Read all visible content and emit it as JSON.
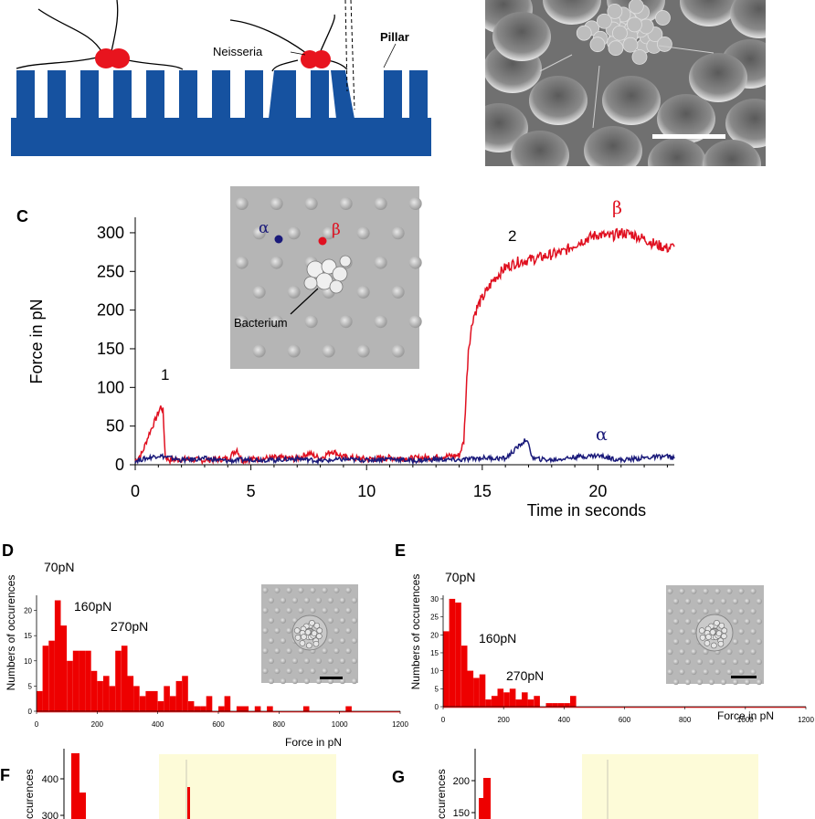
{
  "panel_labels": {
    "c": "C",
    "d": "D",
    "e": "E",
    "f": "F",
    "g": "G"
  },
  "schematic": {
    "neisseria_label": "Neisseria",
    "pillar_label": "Pillar"
  },
  "colors": {
    "pillar_blue": "#1652a0",
    "bacteria_red": "#e8141e",
    "beta_red": "#e01020",
    "alpha_navy": "#1a1a7a",
    "hist_red": "#ee0000",
    "inset_yellow": "#fdfbd8"
  },
  "panel_c": {
    "inset": {
      "alpha": "α",
      "beta": "β",
      "bacterium": "Bacterium"
    },
    "annotations": {
      "peak1": "1",
      "peak2": "2",
      "beta_label": "β",
      "alpha_label": "α"
    }
  },
  "chart_data": [
    {
      "id": "C",
      "type": "line",
      "xlabel": "Time in seconds",
      "ylabel": "Force in pN",
      "xlim": [
        0,
        23.3
      ],
      "ylim": [
        0,
        320
      ],
      "xticks": [
        0,
        5,
        10,
        15,
        20
      ],
      "yticks": [
        0,
        50,
        100,
        150,
        200,
        250,
        300
      ],
      "series": [
        {
          "name": "β",
          "color": "#e01020",
          "x": [
            0,
            0.3,
            0.6,
            0.9,
            1.1,
            1.2,
            1.3,
            1.5,
            2,
            3,
            4,
            4.4,
            4.6,
            5,
            6,
            7,
            7.5,
            8,
            8.5,
            9,
            10,
            11,
            12,
            13,
            14,
            14.2,
            14.4,
            14.6,
            14.8,
            15,
            15.2,
            15.5,
            16,
            16.5,
            17,
            17.5,
            18,
            18.5,
            19,
            19.5,
            20,
            20.5,
            21,
            21.5,
            22,
            22.5,
            23,
            23.3
          ],
          "y": [
            5,
            15,
            40,
            60,
            75,
            70,
            10,
            6,
            7,
            6,
            8,
            20,
            6,
            7,
            9,
            8,
            15,
            8,
            18,
            10,
            7,
            9,
            8,
            10,
            12,
            30,
            150,
            190,
            205,
            215,
            225,
            240,
            255,
            262,
            265,
            268,
            272,
            275,
            285,
            292,
            298,
            295,
            300,
            298,
            292,
            285,
            280,
            282
          ]
        },
        {
          "name": "α",
          "color": "#1a1a7a",
          "x": [
            0,
            1,
            2,
            3,
            4,
            5,
            6,
            7,
            8,
            9,
            10,
            11,
            12,
            13,
            14,
            15,
            16,
            16.9,
            17.2,
            18,
            19,
            20,
            21,
            22,
            23,
            23.3
          ],
          "y": [
            5,
            12,
            6,
            8,
            5,
            7,
            6,
            8,
            5,
            7,
            6,
            8,
            5,
            7,
            6,
            9,
            8,
            33,
            8,
            6,
            10,
            12,
            6,
            9,
            11,
            8
          ]
        }
      ]
    },
    {
      "id": "D",
      "type": "bar",
      "xlabel": "Force in pN",
      "ylabel": "Numbers of occurences",
      "xlim": [
        0,
        1200
      ],
      "ylim": [
        0,
        23
      ],
      "xticks": [
        0,
        200,
        400,
        600,
        800,
        1000,
        1200
      ],
      "yticks": [
        0,
        5,
        10,
        15,
        20
      ],
      "bin_width": 20,
      "x": [
        20,
        40,
        60,
        80,
        100,
        120,
        140,
        160,
        180,
        200,
        220,
        240,
        260,
        280,
        300,
        320,
        340,
        360,
        380,
        400,
        420,
        440,
        460,
        480,
        500,
        520,
        540,
        560,
        580,
        600,
        620,
        640,
        660,
        680,
        700,
        720,
        740,
        760,
        780,
        800,
        820,
        840,
        860,
        880,
        900,
        920,
        940,
        960,
        980,
        1000,
        1020,
        1040,
        1060
      ],
      "values": [
        4,
        13,
        14,
        22,
        17,
        10,
        12,
        12,
        12,
        8,
        6,
        7,
        5,
        12,
        13,
        7,
        5,
        3,
        4,
        4,
        2,
        5,
        3,
        6,
        7,
        2,
        1,
        1,
        3,
        0,
        1,
        3,
        0,
        1,
        1,
        0,
        1,
        0,
        1,
        0,
        0,
        0,
        0,
        0,
        1,
        0,
        0,
        0,
        0,
        0,
        0,
        1,
        0
      ],
      "annotations": [
        "70pN",
        "160pN",
        "270pN"
      ]
    },
    {
      "id": "E",
      "type": "bar",
      "xlabel": "Force in pN",
      "ylabel": "Numbers of occurences",
      "xlim": [
        0,
        1200
      ],
      "ylim": [
        0,
        31
      ],
      "xticks": [
        0,
        200,
        400,
        600,
        800,
        1000,
        1200
      ],
      "yticks": [
        0,
        5,
        10,
        15,
        20,
        25,
        30
      ],
      "bin_width": 20,
      "x": [
        20,
        40,
        60,
        80,
        100,
        120,
        140,
        160,
        180,
        200,
        220,
        240,
        260,
        280,
        300,
        320,
        340,
        360,
        380,
        400,
        420,
        440,
        460
      ],
      "values": [
        21,
        30,
        29,
        17,
        10,
        8,
        9,
        2,
        3,
        5,
        4,
        5,
        2,
        4,
        2,
        3,
        0,
        1,
        1,
        1,
        1,
        3,
        0
      ],
      "annotations": [
        "70pN",
        "160pN",
        "270pN"
      ]
    },
    {
      "id": "F",
      "type": "bar",
      "ylabel": "ccurences",
      "yticks": [
        300,
        400
      ],
      "values": []
    },
    {
      "id": "G",
      "type": "bar",
      "ylabel": "ccurences",
      "yticks": [
        150,
        200
      ],
      "values": []
    }
  ]
}
